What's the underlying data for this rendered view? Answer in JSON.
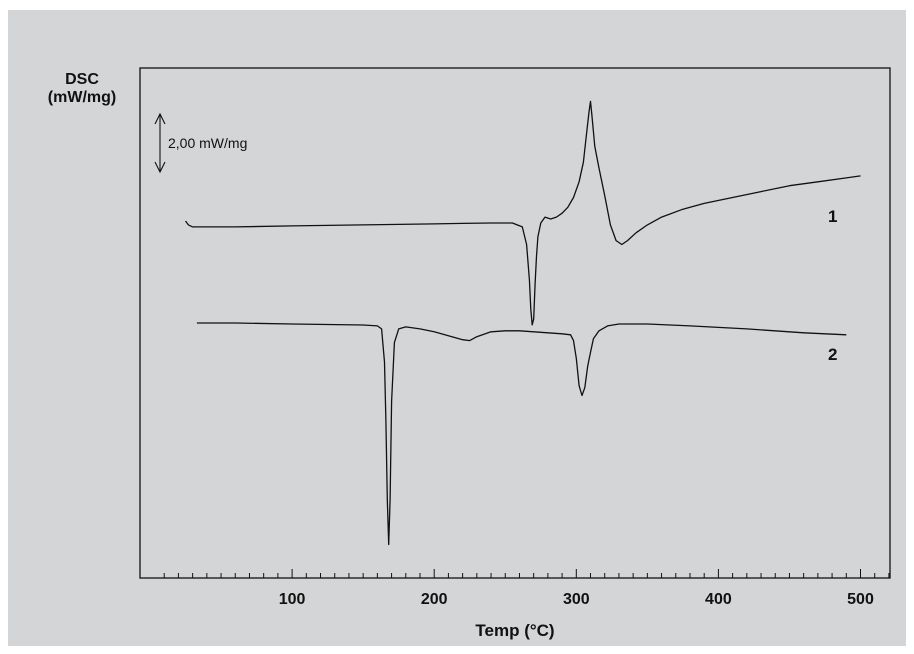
{
  "chart_data": {
    "type": "line",
    "title": "",
    "xlabel": "Temp (°C)",
    "ylabel_line1": "DSC",
    "ylabel_line2": "(mW/mg)",
    "xlim": [
      0,
      530
    ],
    "x_ticks": [
      100,
      200,
      300,
      400,
      500
    ],
    "x_tick_labels": [
      "100",
      "200",
      "300",
      "400",
      "500"
    ],
    "y_unit": "mW/mg",
    "y_axis_tick_labels_shown": false,
    "scale_bar": {
      "label": "2,00 mW/mg",
      "value": 2.0
    },
    "grid": false,
    "legend": "none",
    "series": [
      {
        "name": "1",
        "color": "#111111",
        "x": [
          25,
          27,
          30,
          40,
          60,
          100,
          150,
          200,
          220,
          240,
          255,
          262,
          265,
          267,
          268,
          269,
          270,
          271,
          272,
          273,
          275,
          278,
          282,
          286,
          290,
          294,
          298,
          302,
          305,
          307,
          309,
          310,
          311,
          313,
          316,
          320,
          324,
          328,
          332,
          336,
          342,
          350,
          360,
          375,
          390,
          410,
          430,
          450,
          470,
          490,
          500
        ],
        "y": [
          0.0,
          -0.2,
          -0.3,
          -0.3,
          -0.3,
          -0.25,
          -0.2,
          -0.15,
          -0.12,
          -0.1,
          -0.1,
          -0.3,
          -1.2,
          -3.0,
          -4.5,
          -5.3,
          -5.0,
          -3.2,
          -1.8,
          -0.8,
          -0.1,
          0.2,
          0.1,
          0.2,
          0.4,
          0.7,
          1.2,
          2.0,
          3.0,
          4.3,
          5.6,
          6.1,
          5.4,
          3.8,
          2.7,
          1.3,
          -0.2,
          -1.0,
          -1.2,
          -1.0,
          -0.6,
          -0.2,
          0.2,
          0.6,
          0.9,
          1.2,
          1.5,
          1.8,
          2.0,
          2.2,
          2.3
        ]
      },
      {
        "name": "2",
        "color": "#111111",
        "x": [
          33,
          60,
          100,
          150,
          160,
          163,
          165,
          166,
          167,
          168,
          169,
          170,
          172,
          175,
          180,
          190,
          200,
          210,
          220,
          225,
          230,
          240,
          250,
          260,
          270,
          280,
          290,
          296,
          298,
          300,
          302,
          304,
          306,
          308,
          310,
          312,
          316,
          322,
          330,
          350,
          380,
          420,
          460,
          490
        ],
        "y": [
          0.0,
          0.0,
          -0.05,
          -0.1,
          -0.15,
          -0.3,
          -2.0,
          -5.0,
          -9.0,
          -11.3,
          -9.0,
          -4.0,
          -1.0,
          -0.3,
          -0.2,
          -0.3,
          -0.45,
          -0.65,
          -0.85,
          -0.9,
          -0.7,
          -0.45,
          -0.4,
          -0.4,
          -0.45,
          -0.5,
          -0.55,
          -0.6,
          -0.9,
          -1.8,
          -3.2,
          -3.7,
          -3.3,
          -2.2,
          -1.5,
          -0.8,
          -0.4,
          -0.15,
          -0.05,
          -0.05,
          -0.15,
          -0.3,
          -0.5,
          -0.6
        ]
      }
    ]
  }
}
